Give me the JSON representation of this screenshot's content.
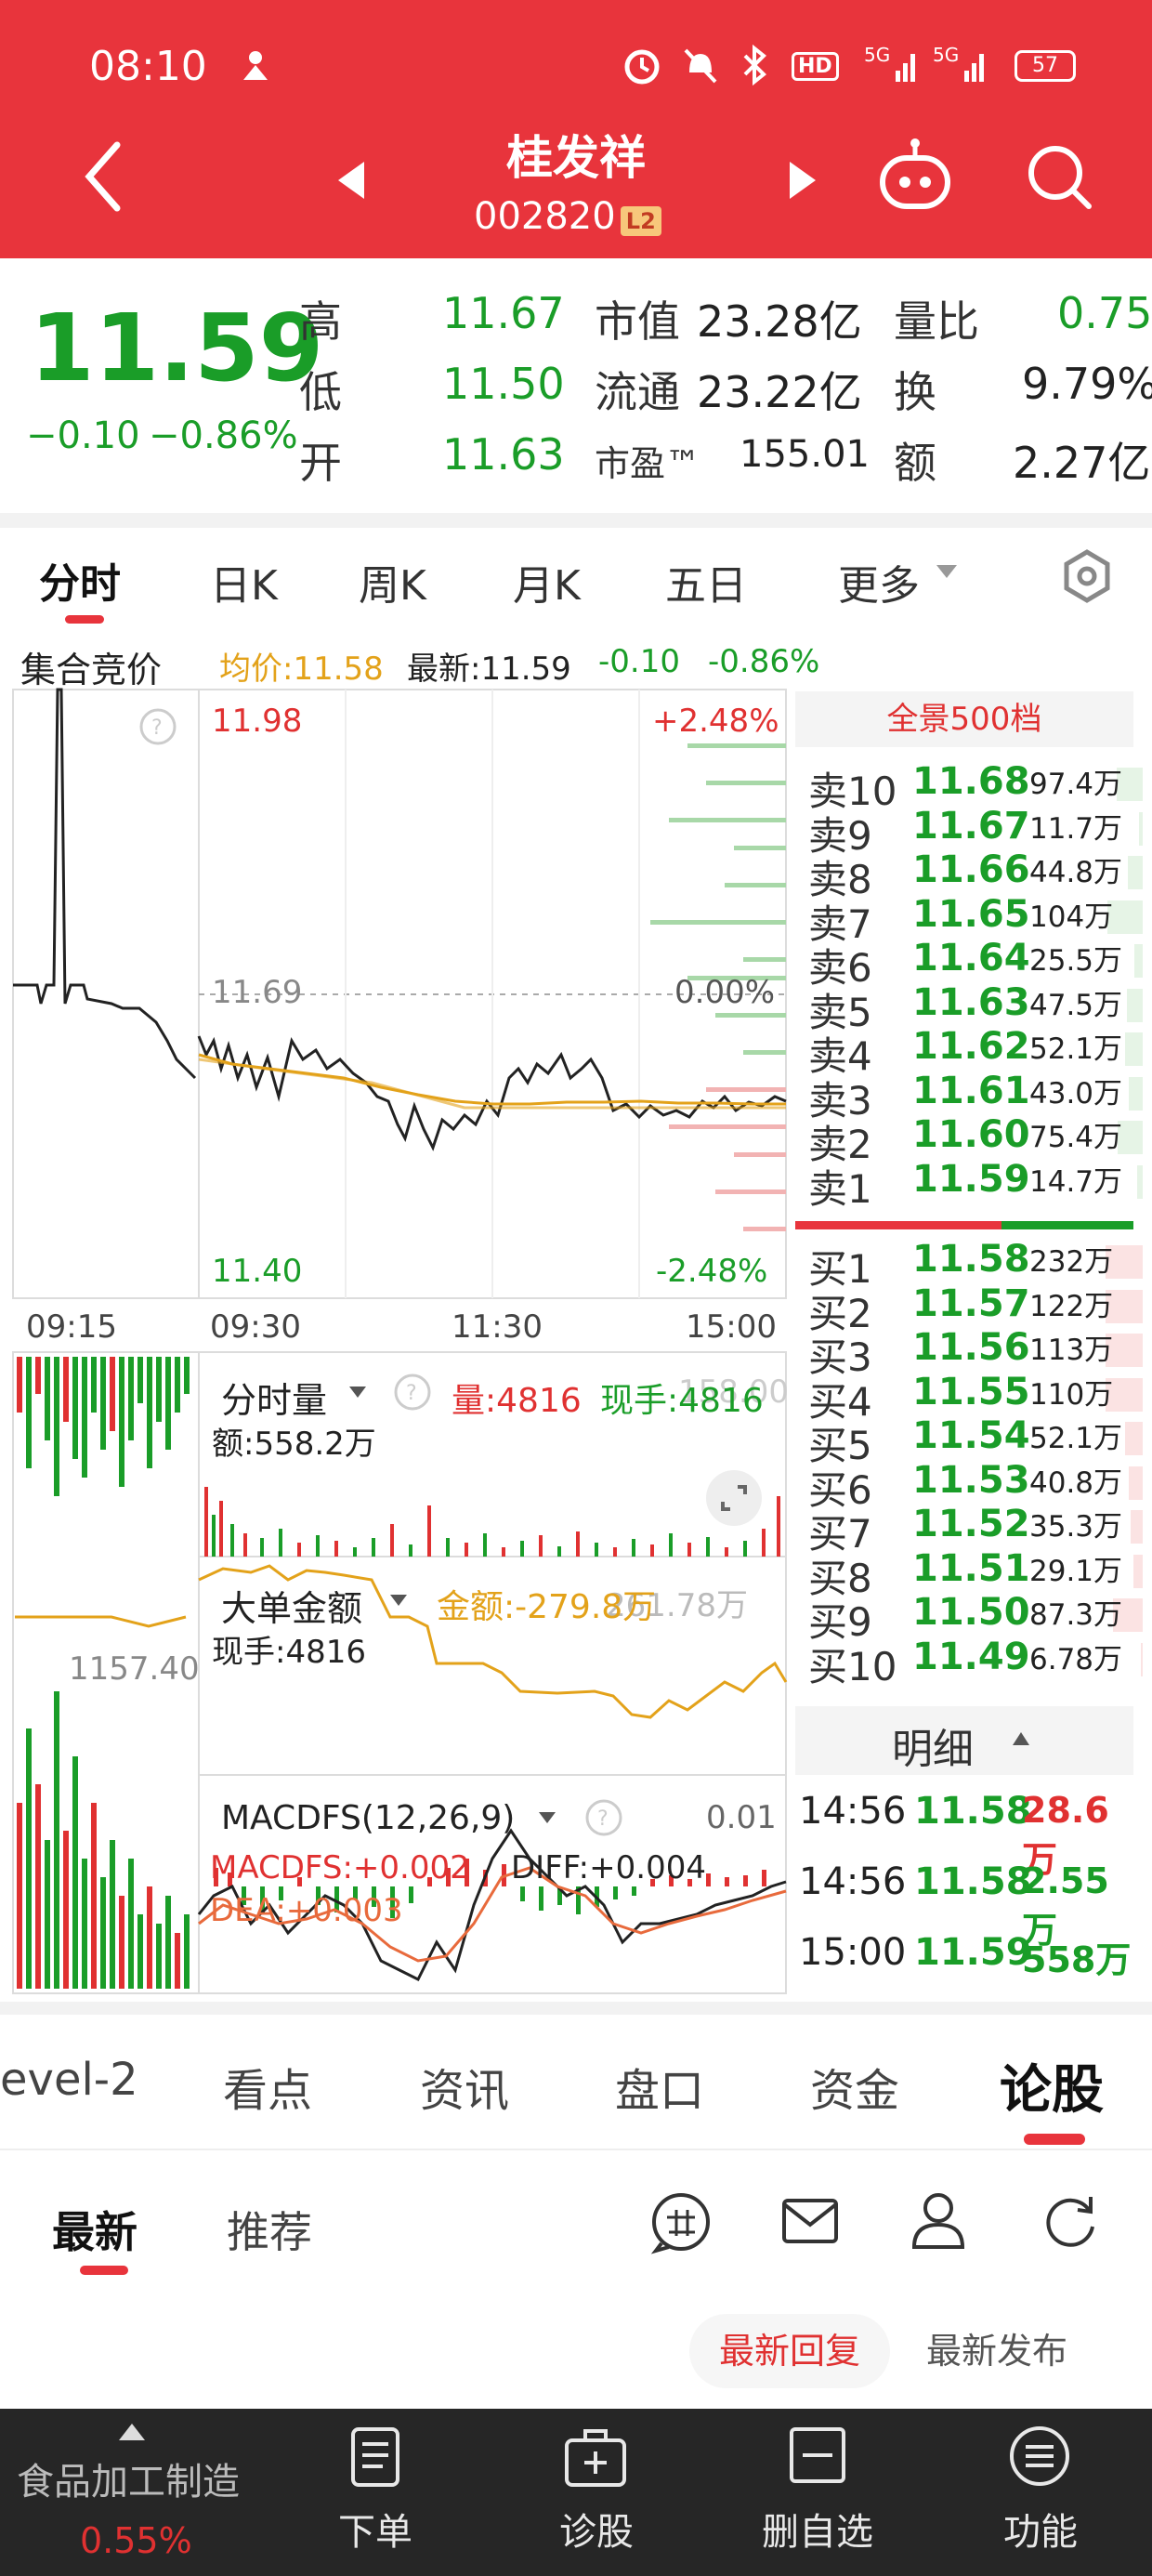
{
  "status_bar": {
    "time": "08:10",
    "battery": "57"
  },
  "header": {
    "title": "桂发祥",
    "code": "002820",
    "badge": "L2"
  },
  "quote": {
    "price": "11.59",
    "change": "−0.10",
    "change_pct": "−0.86%",
    "stats": {
      "high_label": "高",
      "high": "11.67",
      "low_label": "低",
      "low": "11.50",
      "open_label": "开",
      "open": "11.63",
      "mcap_label": "市值",
      "mcap": "23.28亿",
      "float_label": "流通",
      "float": "23.22亿",
      "pe_label": "市盈™",
      "pe": "155.01",
      "vr_label": "量比",
      "vr": "0.75",
      "turnover_label": "换",
      "turnover": "9.79%",
      "amount_label": "额",
      "amount": "2.27亿"
    }
  },
  "chart_tabs": [
    "分时",
    "日K",
    "周K",
    "月K",
    "五日",
    "更多"
  ],
  "info_bar": {
    "auction": "集合竞价",
    "avg": "均价:11.58",
    "latest": "最新:11.59",
    "chg": "-0.10",
    "chg_pct": "-0.86%"
  },
  "main_chart": {
    "price_high": "11.98",
    "pct_high": "+2.48%",
    "price_mid": "11.69",
    "pct_mid": "0.00%",
    "price_low": "11.40",
    "pct_low": "-2.48%",
    "times": [
      "09:15",
      "09:30",
      "11:30",
      "15:00"
    ]
  },
  "volume_panel": {
    "title": "分时量",
    "vol": "量:4816",
    "now": "现手:4816",
    "amount": "额:558.2万",
    "bg_value": "158.00"
  },
  "big_order_panel": {
    "title": "大单金额",
    "amount": "金额:-279.8万",
    "top_value": "261.78万",
    "now": "现手:4816",
    "auction_value": "1157.40"
  },
  "macd_panel": {
    "title": "MACDFS(12,26,9)",
    "top_value": "0.01",
    "macd": "MACDFS:+0.002",
    "diff": "DIFF:+0.004",
    "dea": "DEA:+0.003"
  },
  "order_book": {
    "header": "全景500档",
    "sells": [
      {
        "label": "卖10",
        "price": "11.68",
        "vol": "97.4万"
      },
      {
        "label": "卖9",
        "price": "11.67",
        "vol": "11.7万"
      },
      {
        "label": "卖8",
        "price": "11.66",
        "vol": "44.8万"
      },
      {
        "label": "卖7",
        "price": "11.65",
        "vol": "104万"
      },
      {
        "label": "卖6",
        "price": "11.64",
        "vol": "25.5万"
      },
      {
        "label": "卖5",
        "price": "11.63",
        "vol": "47.5万"
      },
      {
        "label": "卖4",
        "price": "11.62",
        "vol": "52.1万"
      },
      {
        "label": "卖3",
        "price": "11.61",
        "vol": "43.0万"
      },
      {
        "label": "卖2",
        "price": "11.60",
        "vol": "75.4万"
      },
      {
        "label": "卖1",
        "price": "11.59",
        "vol": "14.7万"
      }
    ],
    "buys": [
      {
        "label": "买1",
        "price": "11.58",
        "vol": "232万"
      },
      {
        "label": "买2",
        "price": "11.57",
        "vol": "122万"
      },
      {
        "label": "买3",
        "price": "11.56",
        "vol": "113万"
      },
      {
        "label": "买4",
        "price": "11.55",
        "vol": "110万"
      },
      {
        "label": "买5",
        "price": "11.54",
        "vol": "52.1万"
      },
      {
        "label": "买6",
        "price": "11.53",
        "vol": "40.8万"
      },
      {
        "label": "买7",
        "price": "11.52",
        "vol": "35.3万"
      },
      {
        "label": "买8",
        "price": "11.51",
        "vol": "29.1万"
      },
      {
        "label": "买9",
        "price": "11.50",
        "vol": "87.3万"
      },
      {
        "label": "买10",
        "price": "11.49",
        "vol": "6.78万"
      }
    ],
    "detail_title": "明细",
    "details": [
      {
        "time": "14:56",
        "price": "11.58",
        "vol": "28.6万"
      },
      {
        "time": "14:56",
        "price": "11.58",
        "vol": "2.55万"
      },
      {
        "time": "15:00",
        "price": "11.59",
        "vol": "558万"
      }
    ]
  },
  "bottom_tabs": [
    "evel-2",
    "看点",
    "资讯",
    "盘口",
    "资金",
    "论股"
  ],
  "sub_tabs": {
    "latest": "最新",
    "recommend": "推荐",
    "reply": "最新回复",
    "publish": "最新发布"
  },
  "bottom_nav": {
    "sector": "食品加工制造",
    "sector_pct": "0.55%",
    "items": [
      "下单",
      "诊股",
      "删自选",
      "功能"
    ]
  },
  "colors": {
    "header": "#e8343c",
    "up": "#e03131",
    "down": "#1a9d28",
    "avg_line": "#e3a21a"
  }
}
